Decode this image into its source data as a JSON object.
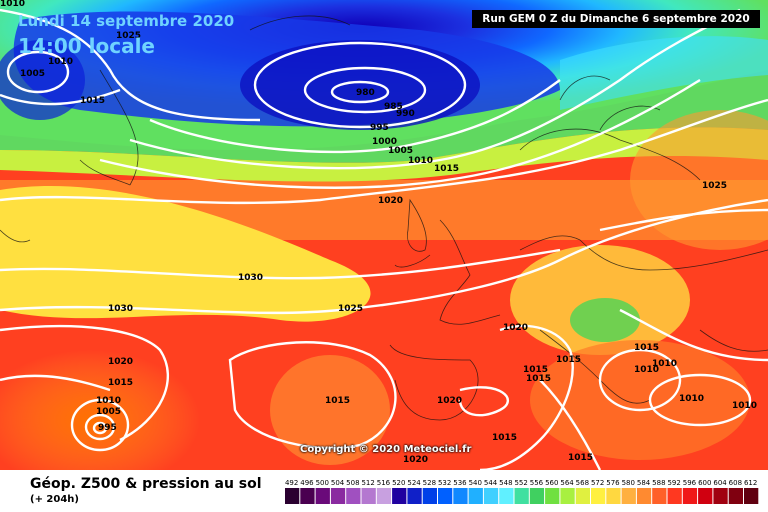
{
  "header": {
    "date_line": "Lundi 14 septembre 2020",
    "time_line": "14:00 locale",
    "run_info": "Run GEM 0 Z du Dimanche 6 septembre 2020"
  },
  "copyright": "Copyright © 2020 Meteociel.fr",
  "footer": {
    "title": "Géop. Z500 & pression au sol",
    "lead": "(+ 204h)"
  },
  "legend": {
    "values": [
      "492",
      "496",
      "500",
      "504",
      "508",
      "512",
      "516",
      "520",
      "524",
      "528",
      "532",
      "536",
      "540",
      "544",
      "548",
      "552",
      "556",
      "560",
      "564",
      "568",
      "572",
      "576",
      "580",
      "584",
      "588",
      "592",
      "596",
      "600",
      "604",
      "608",
      "612"
    ],
    "colors": [
      "#2a0030",
      "#4a0050",
      "#6a0a7a",
      "#8a2aa0",
      "#a050c0",
      "#b478d0",
      "#c8a0e0",
      "#2000a0",
      "#1020c8",
      "#0040e8",
      "#0060ff",
      "#1088ff",
      "#20b0ff",
      "#40d0ff",
      "#60f0ff",
      "#40e0a0",
      "#40d060",
      "#70e040",
      "#a8f040",
      "#e0f040",
      "#fff040",
      "#ffd840",
      "#ffb040",
      "#ff8a30",
      "#ff6028",
      "#ff3820",
      "#f01818",
      "#d00010",
      "#a00010",
      "#800010",
      "#600010"
    ]
  },
  "isobar_labels": [
    "1010",
    "1025",
    "1010",
    "1005",
    "1015",
    "980",
    "985",
    "990",
    "995",
    "1000",
    "1005",
    "1010",
    "1015",
    "1020",
    "1025",
    "1030",
    "1030",
    "1025",
    "1020",
    "1020",
    "1015",
    "1010",
    "1005",
    "995",
    "1015",
    "1020",
    "1015",
    "1015",
    "1015",
    "1010",
    "1010",
    "1010",
    "1010",
    "1015",
    "1015",
    "1015",
    "1020"
  ]
}
